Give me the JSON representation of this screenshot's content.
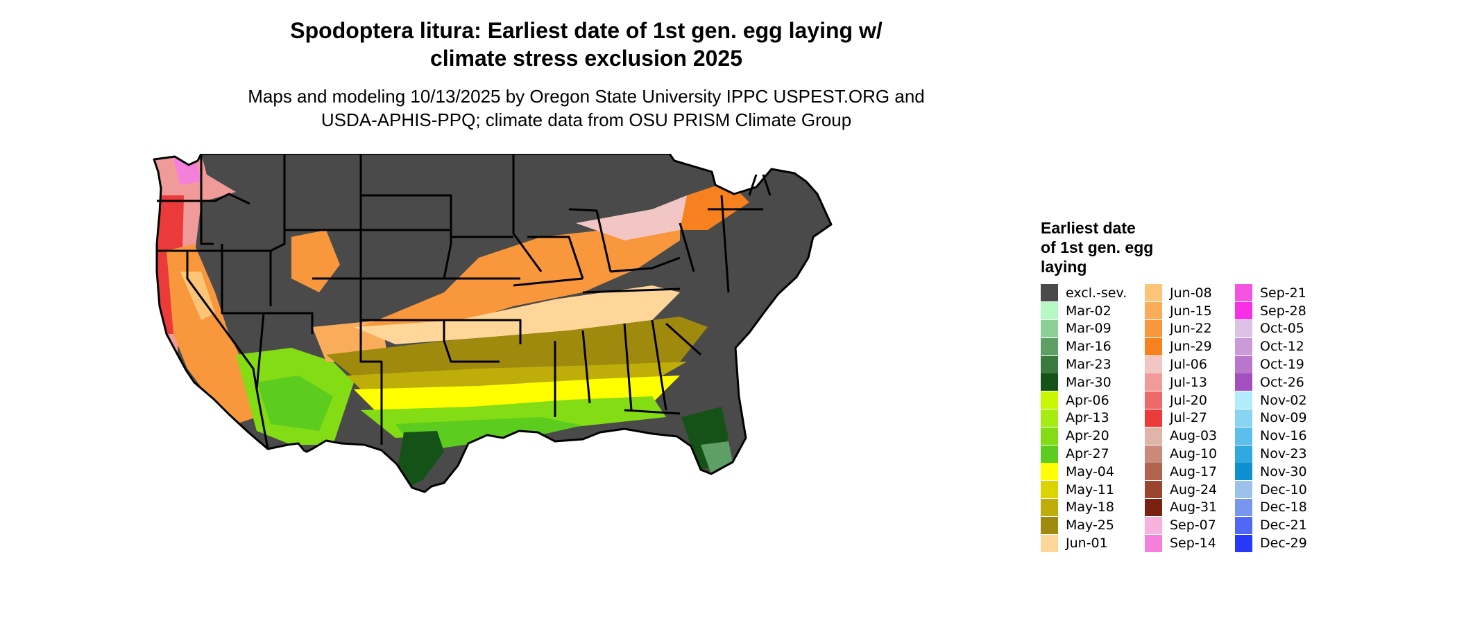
{
  "title_line1": "Spodoptera litura: Earliest date of 1st gen. egg laying w/",
  "title_line2": "climate stress exclusion 2025",
  "subtitle_line1": "Maps and modeling 10/13/2025 by Oregon State University IPPC USPEST.ORG and",
  "subtitle_line2": "USDA-APHIS-PPQ; climate data from OSU PRISM Climate Group",
  "legend": {
    "title_line1": "Earliest date",
    "title_line2": "of 1st gen. egg",
    "title_line3": "laying",
    "columns": [
      [
        {
          "label": "excl.-sev.",
          "color": "#4a4a4a"
        },
        {
          "label": "Mar-02",
          "color": "#b6f7c4"
        },
        {
          "label": "Mar-09",
          "color": "#8ccf96"
        },
        {
          "label": "Mar-16",
          "color": "#5e9f66"
        },
        {
          "label": "Mar-23",
          "color": "#3a7a3e"
        },
        {
          "label": "Mar-30",
          "color": "#155218"
        },
        {
          "label": "Apr-06",
          "color": "#c8f700"
        },
        {
          "label": "Apr-13",
          "color": "#a6ec12"
        },
        {
          "label": "Apr-20",
          "color": "#84dc14"
        },
        {
          "label": "Apr-27",
          "color": "#5ccc1e"
        },
        {
          "label": "May-04",
          "color": "#ffff00"
        },
        {
          "label": "May-11",
          "color": "#dcd400"
        },
        {
          "label": "May-18",
          "color": "#bfad0a"
        },
        {
          "label": "May-25",
          "color": "#a08a0e"
        },
        {
          "label": "Jun-01",
          "color": "#ffd699"
        }
      ],
      [
        {
          "label": "Jun-08",
          "color": "#fbc476"
        },
        {
          "label": "Jun-15",
          "color": "#f9ad5a"
        },
        {
          "label": "Jun-22",
          "color": "#f8973c"
        },
        {
          "label": "Jun-29",
          "color": "#f7801f"
        },
        {
          "label": "Jul-06",
          "color": "#f3c6c6"
        },
        {
          "label": "Jul-13",
          "color": "#f09a9a"
        },
        {
          "label": "Jul-20",
          "color": "#ec6a6a"
        },
        {
          "label": "Jul-27",
          "color": "#ea3a3a"
        },
        {
          "label": "Aug-03",
          "color": "#e0b4a8"
        },
        {
          "label": "Aug-10",
          "color": "#c98a7c"
        },
        {
          "label": "Aug-17",
          "color": "#b06450"
        },
        {
          "label": "Aug-24",
          "color": "#9a4530"
        },
        {
          "label": "Aug-31",
          "color": "#7a2210"
        },
        {
          "label": "Sep-07",
          "color": "#f7b2dc"
        },
        {
          "label": "Sep-14",
          "color": "#f580dc"
        }
      ],
      [
        {
          "label": "Sep-21",
          "color": "#f554e0"
        },
        {
          "label": "Sep-28",
          "color": "#f72fe6"
        },
        {
          "label": "Oct-05",
          "color": "#dcc2e6"
        },
        {
          "label": "Oct-12",
          "color": "#cc9ad8"
        },
        {
          "label": "Oct-19",
          "color": "#b877cc"
        },
        {
          "label": "Oct-26",
          "color": "#a44fc0"
        },
        {
          "label": "Nov-02",
          "color": "#b2ecfb"
        },
        {
          "label": "Nov-09",
          "color": "#88d4f2"
        },
        {
          "label": "Nov-16",
          "color": "#5cbeea"
        },
        {
          "label": "Nov-23",
          "color": "#30a8e0"
        },
        {
          "label": "Nov-30",
          "color": "#0e90d0"
        },
        {
          "label": "Dec-10",
          "color": "#9cc2ec"
        },
        {
          "label": "Dec-18",
          "color": "#7896ee"
        },
        {
          "label": "Dec-21",
          "color": "#5068f4"
        },
        {
          "label": "Dec-29",
          "color": "#2838fa"
        }
      ]
    ]
  }
}
